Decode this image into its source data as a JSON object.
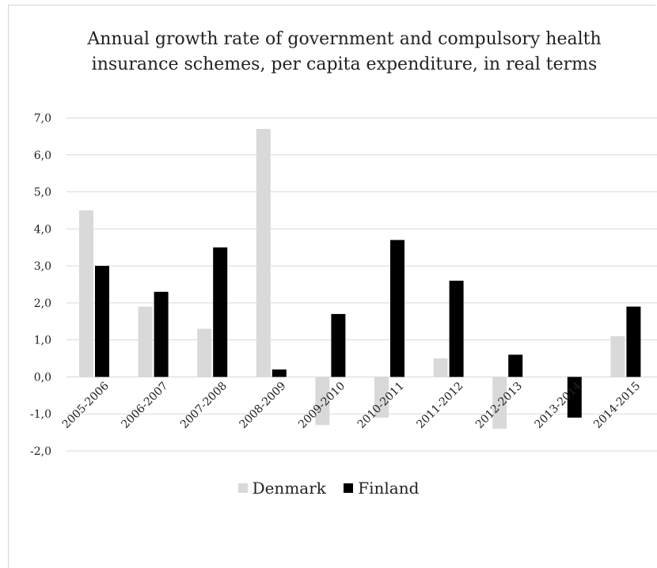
{
  "chart_data": {
    "type": "bar",
    "title_line1": "Annual growth rate of government and compulsory health",
    "title_line2": "insurance schemes, per capita expenditure, in real terms",
    "categories": [
      "2005-2006",
      "2006-2007",
      "2007-2008",
      "2008-2009",
      "2009-2010",
      "2010-2011",
      "2011-2012",
      "2012-2013",
      "2013-2014",
      "2014-2015"
    ],
    "series": [
      {
        "name": "Denmark",
        "color": "#d9d9d9",
        "values": [
          4.5,
          1.9,
          1.3,
          6.7,
          -1.3,
          -1.1,
          0.5,
          -1.4,
          0.0,
          1.1
        ]
      },
      {
        "name": "Finland",
        "color": "#000000",
        "values": [
          3.0,
          2.3,
          3.5,
          0.2,
          1.7,
          3.7,
          2.6,
          0.6,
          -1.1,
          1.9
        ]
      }
    ],
    "yticks": [
      "7,0",
      "6,0",
      "5,0",
      "4,0",
      "3,0",
      "2,0",
      "1,0",
      "0,0",
      "-1,0",
      "-2,0"
    ],
    "ylim": [
      -2,
      7
    ],
    "grid": true,
    "legend_position": "bottom"
  }
}
